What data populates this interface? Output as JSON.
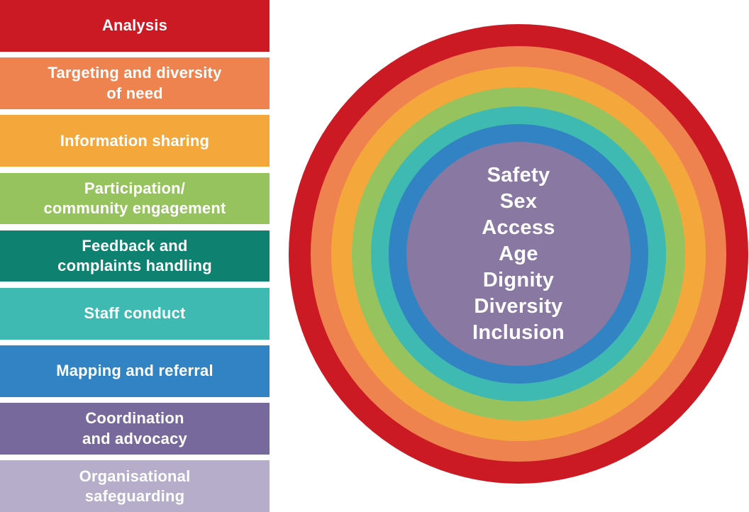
{
  "legend": {
    "items": [
      {
        "id": "analysis",
        "label": "Analysis",
        "color": "#cc1a25"
      },
      {
        "id": "targeting-diversity-of-need",
        "label": "Targeting and diversity\nof need",
        "color": "#ef8350"
      },
      {
        "id": "information-sharing",
        "label": "Information sharing",
        "color": "#f4a83c"
      },
      {
        "id": "participation-engagement",
        "label": "Participation/\ncommunity engagement",
        "color": "#97c35e"
      },
      {
        "id": "feedback-complaints",
        "label": "Feedback and\ncomplaints handling",
        "color": "#0f8170"
      },
      {
        "id": "staff-conduct",
        "label": "Staff conduct",
        "color": "#3fbab2"
      },
      {
        "id": "mapping-referral",
        "label": "Mapping and referral",
        "color": "#3183c4"
      },
      {
        "id": "coordination-advocacy",
        "label": "Coordination\nand advocacy",
        "color": "#77699b"
      },
      {
        "id": "organisational-safeguarding",
        "label": "Organisational\nsafeguarding",
        "color": "#b5adca"
      }
    ]
  },
  "wheel": {
    "rings": [
      {
        "name": "analysis-ring",
        "color": "#cc1a25"
      },
      {
        "name": "targeting-ring",
        "color": "#ef8350"
      },
      {
        "name": "information-sharing-ring",
        "color": "#f4a83c"
      },
      {
        "name": "participation-ring",
        "color": "#97c35e"
      },
      {
        "name": "staff-conduct-ring",
        "color": "#3fbab2"
      },
      {
        "name": "mapping-referral-ring",
        "color": "#3183c4"
      }
    ],
    "center": {
      "color": "#8878a2",
      "lines": [
        "Safety",
        "Sex",
        "Access",
        "Age",
        "Dignity",
        "Diversity",
        "Inclusion"
      ]
    }
  }
}
